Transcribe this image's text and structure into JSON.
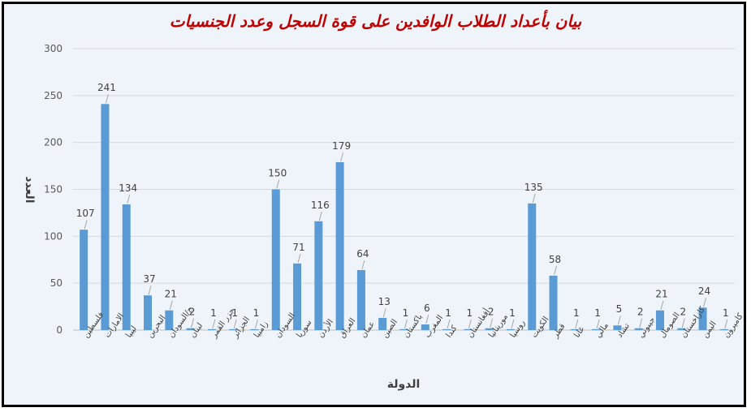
{
  "chart_data": {
    "type": "bar",
    "title": "بيان بأعداد الطلاب الوافدين على قوة السجل وعدد الجنسيات",
    "xlabel": "الدولة",
    "ylabel": "العدد",
    "ylim": [
      0,
      300
    ],
    "yticks": [
      0,
      50,
      100,
      150,
      200,
      250,
      300
    ],
    "grid": true,
    "color": "#5b9bd5",
    "categories": [
      "فلسطين",
      "الامارات",
      "ليبيا",
      "البحرين",
      "ج/السودان",
      "لبنان",
      "جزر القمر",
      "الجزائر",
      "زامبيا",
      "السودان",
      "سوريا",
      "الأردن",
      "العراق",
      "عمان",
      "الصين",
      "باكستان",
      "المغرب",
      "كندا",
      "أفغانستان",
      "موريتانيا",
      "روسيا",
      "الكويت",
      "قطر",
      "غانا",
      "مالي",
      "تشاد",
      "جيبوتي",
      "الصومال",
      "كازاخستان",
      "اليمن",
      "كاميرون"
    ],
    "values": [
      107,
      241,
      134,
      37,
      21,
      2,
      1,
      1,
      1,
      150,
      71,
      116,
      179,
      64,
      13,
      1,
      6,
      1,
      1,
      2,
      1,
      135,
      58,
      1,
      1,
      5,
      2,
      21,
      2,
      24,
      1
    ]
  }
}
